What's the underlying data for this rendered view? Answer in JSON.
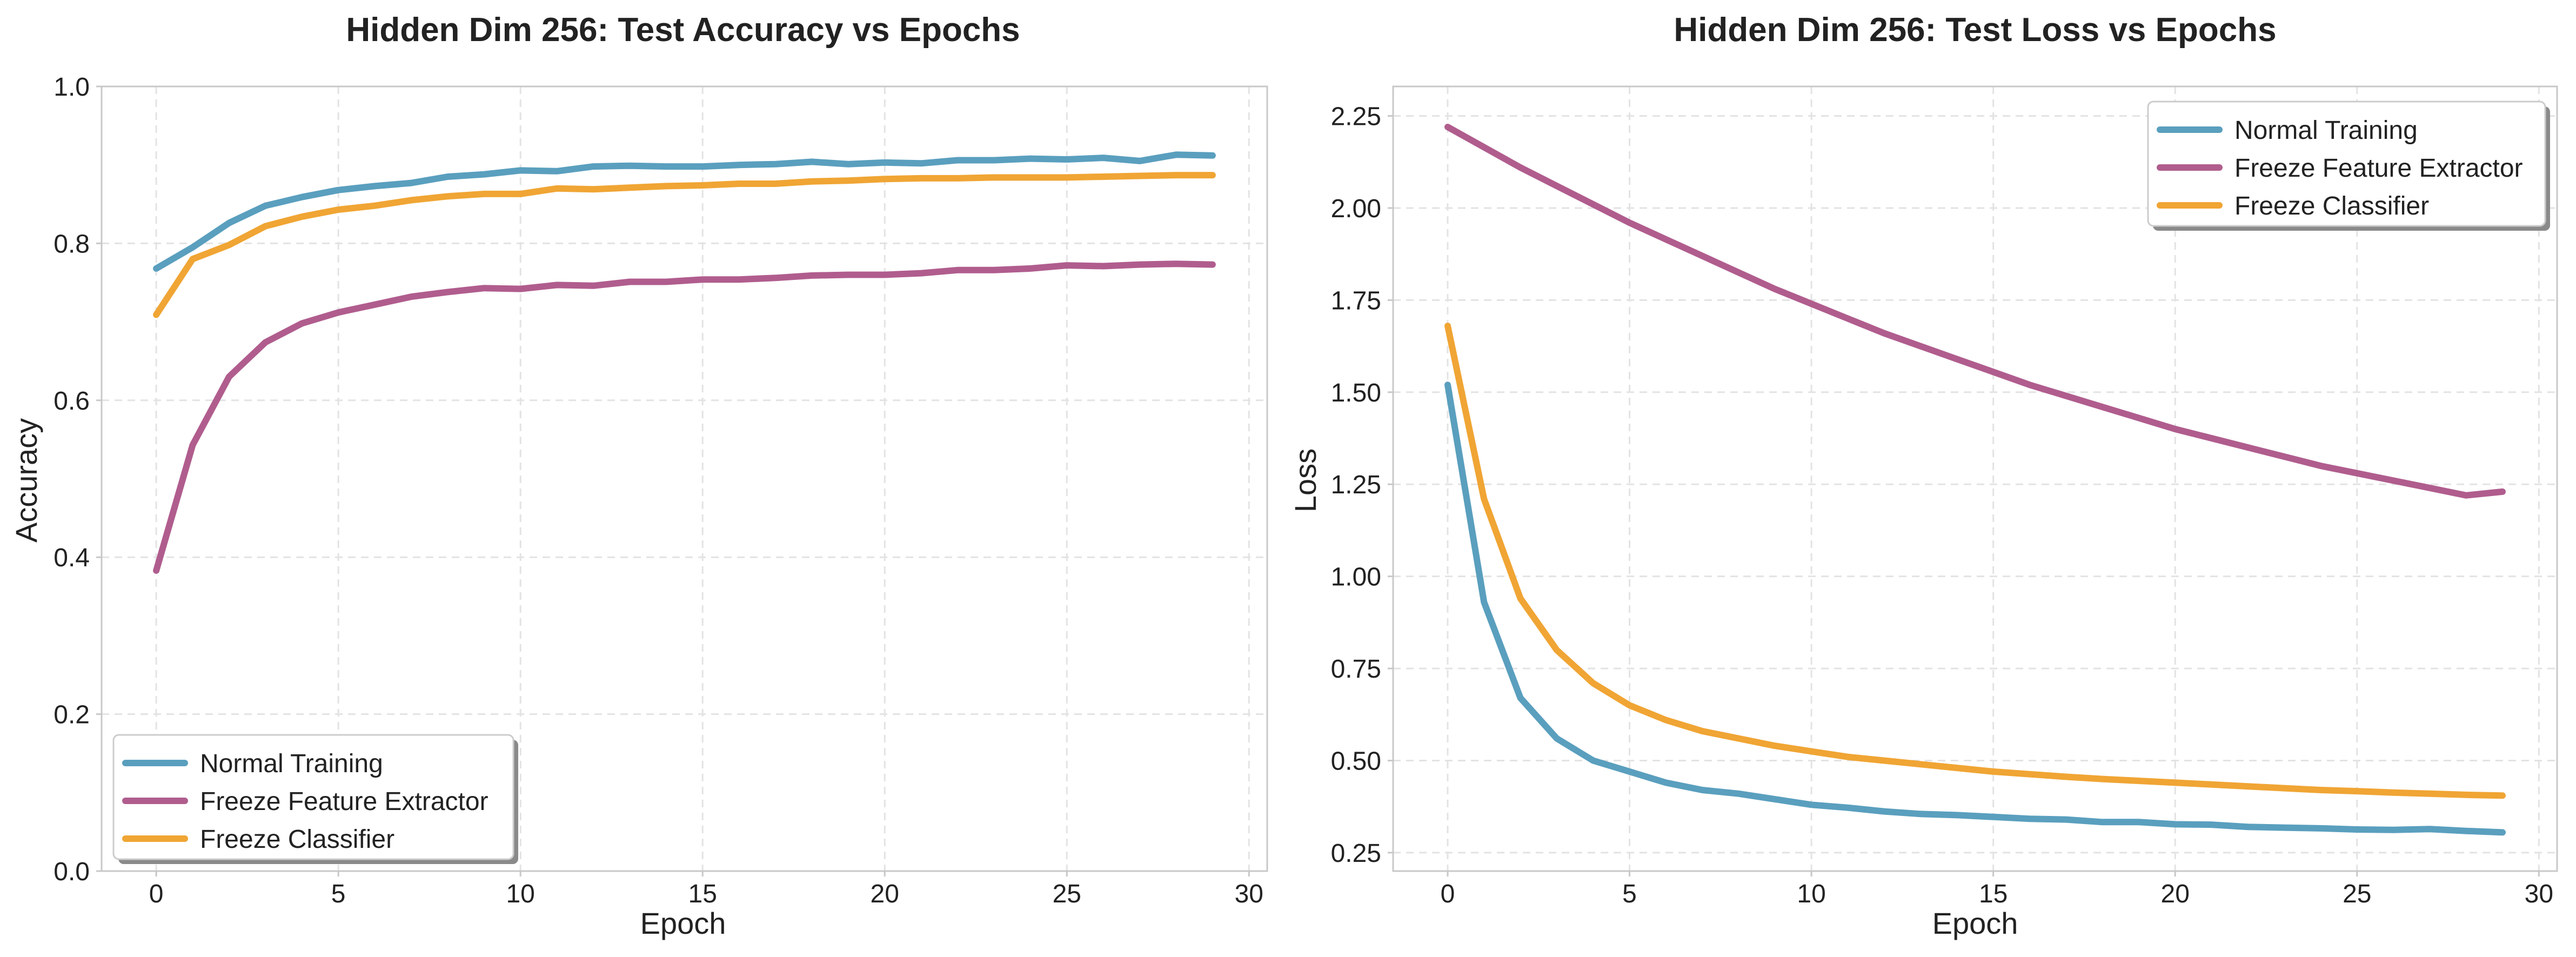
{
  "chart_data": [
    {
      "type": "line",
      "title": "Hidden Dim 256: Test Accuracy vs Epochs",
      "xlabel": "Epoch",
      "ylabel": "Accuracy",
      "xlim": [
        -1.5,
        30.5
      ],
      "ylim": [
        0.0,
        1.0
      ],
      "xticks": [
        0,
        5,
        10,
        15,
        20,
        25,
        30
      ],
      "yticks": [
        0.0,
        0.2,
        0.4,
        0.6,
        0.8,
        1.0
      ],
      "xtick_labels": [
        "0",
        "5",
        "10",
        "15",
        "20",
        "25",
        "30"
      ],
      "ytick_labels": [
        "0.0",
        "0.2",
        "0.4",
        "0.6",
        "0.8",
        "1.0"
      ],
      "grid": true,
      "legend_position": "lower-left",
      "x": [
        0,
        1,
        2,
        3,
        4,
        5,
        6,
        7,
        8,
        9,
        10,
        11,
        12,
        13,
        14,
        15,
        16,
        17,
        18,
        19,
        20,
        21,
        22,
        23,
        24,
        25,
        26,
        27,
        28,
        29
      ],
      "series": [
        {
          "name": "Normal Training",
          "color": "#5a9fbe",
          "values": [
            0.768,
            0.795,
            0.826,
            0.848,
            0.859,
            0.868,
            0.873,
            0.877,
            0.885,
            0.888,
            0.893,
            0.892,
            0.898,
            0.899,
            0.898,
            0.898,
            0.9,
            0.901,
            0.904,
            0.901,
            0.903,
            0.902,
            0.906,
            0.906,
            0.908,
            0.907,
            0.909,
            0.905,
            0.913,
            0.912
          ]
        },
        {
          "name": "Freeze Feature Extractor",
          "color": "#b05d8e",
          "values": [
            0.383,
            0.543,
            0.63,
            0.674,
            0.698,
            0.712,
            0.722,
            0.732,
            0.738,
            0.743,
            0.742,
            0.747,
            0.746,
            0.751,
            0.751,
            0.754,
            0.754,
            0.756,
            0.759,
            0.76,
            0.76,
            0.762,
            0.766,
            0.766,
            0.768,
            0.772,
            0.771,
            0.773,
            0.774,
            0.773
          ]
        },
        {
          "name": "Freeze Classifier",
          "color": "#f0a534",
          "values": [
            0.709,
            0.78,
            0.798,
            0.822,
            0.834,
            0.843,
            0.848,
            0.855,
            0.86,
            0.863,
            0.863,
            0.87,
            0.869,
            0.871,
            0.873,
            0.874,
            0.876,
            0.876,
            0.879,
            0.88,
            0.882,
            0.883,
            0.883,
            0.884,
            0.884,
            0.884,
            0.885,
            0.886,
            0.887,
            0.887
          ]
        }
      ]
    },
    {
      "type": "line",
      "title": "Hidden Dim 256: Test Loss vs Epochs",
      "xlabel": "Epoch",
      "ylabel": "Loss",
      "xlim": [
        -1.5,
        30.5
      ],
      "ylim": [
        0.2,
        2.33
      ],
      "xticks": [
        0,
        5,
        10,
        15,
        20,
        25,
        30
      ],
      "yticks": [
        0.25,
        0.5,
        0.75,
        1.0,
        1.25,
        1.5,
        1.75,
        2.0,
        2.25
      ],
      "xtick_labels": [
        "0",
        "5",
        "10",
        "15",
        "20",
        "25",
        "30"
      ],
      "ytick_labels": [
        "0.25",
        "0.50",
        "0.75",
        "1.00",
        "1.25",
        "1.50",
        "1.75",
        "2.00",
        "2.25"
      ],
      "grid": true,
      "legend_position": "upper-right",
      "x": [
        0,
        1,
        2,
        3,
        4,
        5,
        6,
        7,
        8,
        9,
        10,
        11,
        12,
        13,
        14,
        15,
        16,
        17,
        18,
        19,
        20,
        21,
        22,
        23,
        24,
        25,
        26,
        27,
        28,
        29
      ],
      "series": [
        {
          "name": "Normal Training",
          "color": "#5a9fbe",
          "values": [
            1.52,
            0.93,
            0.67,
            0.56,
            0.5,
            0.47,
            0.44,
            0.42,
            0.41,
            0.395,
            0.38,
            0.372,
            0.362,
            0.355,
            0.352,
            0.347,
            0.342,
            0.34,
            0.333,
            0.333,
            0.327,
            0.326,
            0.32,
            0.318,
            0.316,
            0.313,
            0.312,
            0.314,
            0.309,
            0.305
          ]
        },
        {
          "name": "Freeze Feature Extractor",
          "color": "#b05d8e",
          "values": [
            2.22,
            2.165,
            2.11,
            2.06,
            2.01,
            1.96,
            1.915,
            1.87,
            1.825,
            1.78,
            1.74,
            1.7,
            1.66,
            1.625,
            1.59,
            1.555,
            1.52,
            1.49,
            1.46,
            1.43,
            1.4,
            1.375,
            1.35,
            1.325,
            1.3,
            1.28,
            1.26,
            1.24,
            1.22,
            1.23
          ]
        },
        {
          "name": "Freeze Classifier",
          "color": "#f0a534",
          "values": [
            1.68,
            1.21,
            0.94,
            0.8,
            0.71,
            0.65,
            0.61,
            0.58,
            0.56,
            0.54,
            0.525,
            0.51,
            0.5,
            0.49,
            0.48,
            0.47,
            0.463,
            0.456,
            0.45,
            0.445,
            0.44,
            0.435,
            0.43,
            0.425,
            0.42,
            0.417,
            0.413,
            0.41,
            0.407,
            0.405
          ]
        }
      ]
    }
  ]
}
